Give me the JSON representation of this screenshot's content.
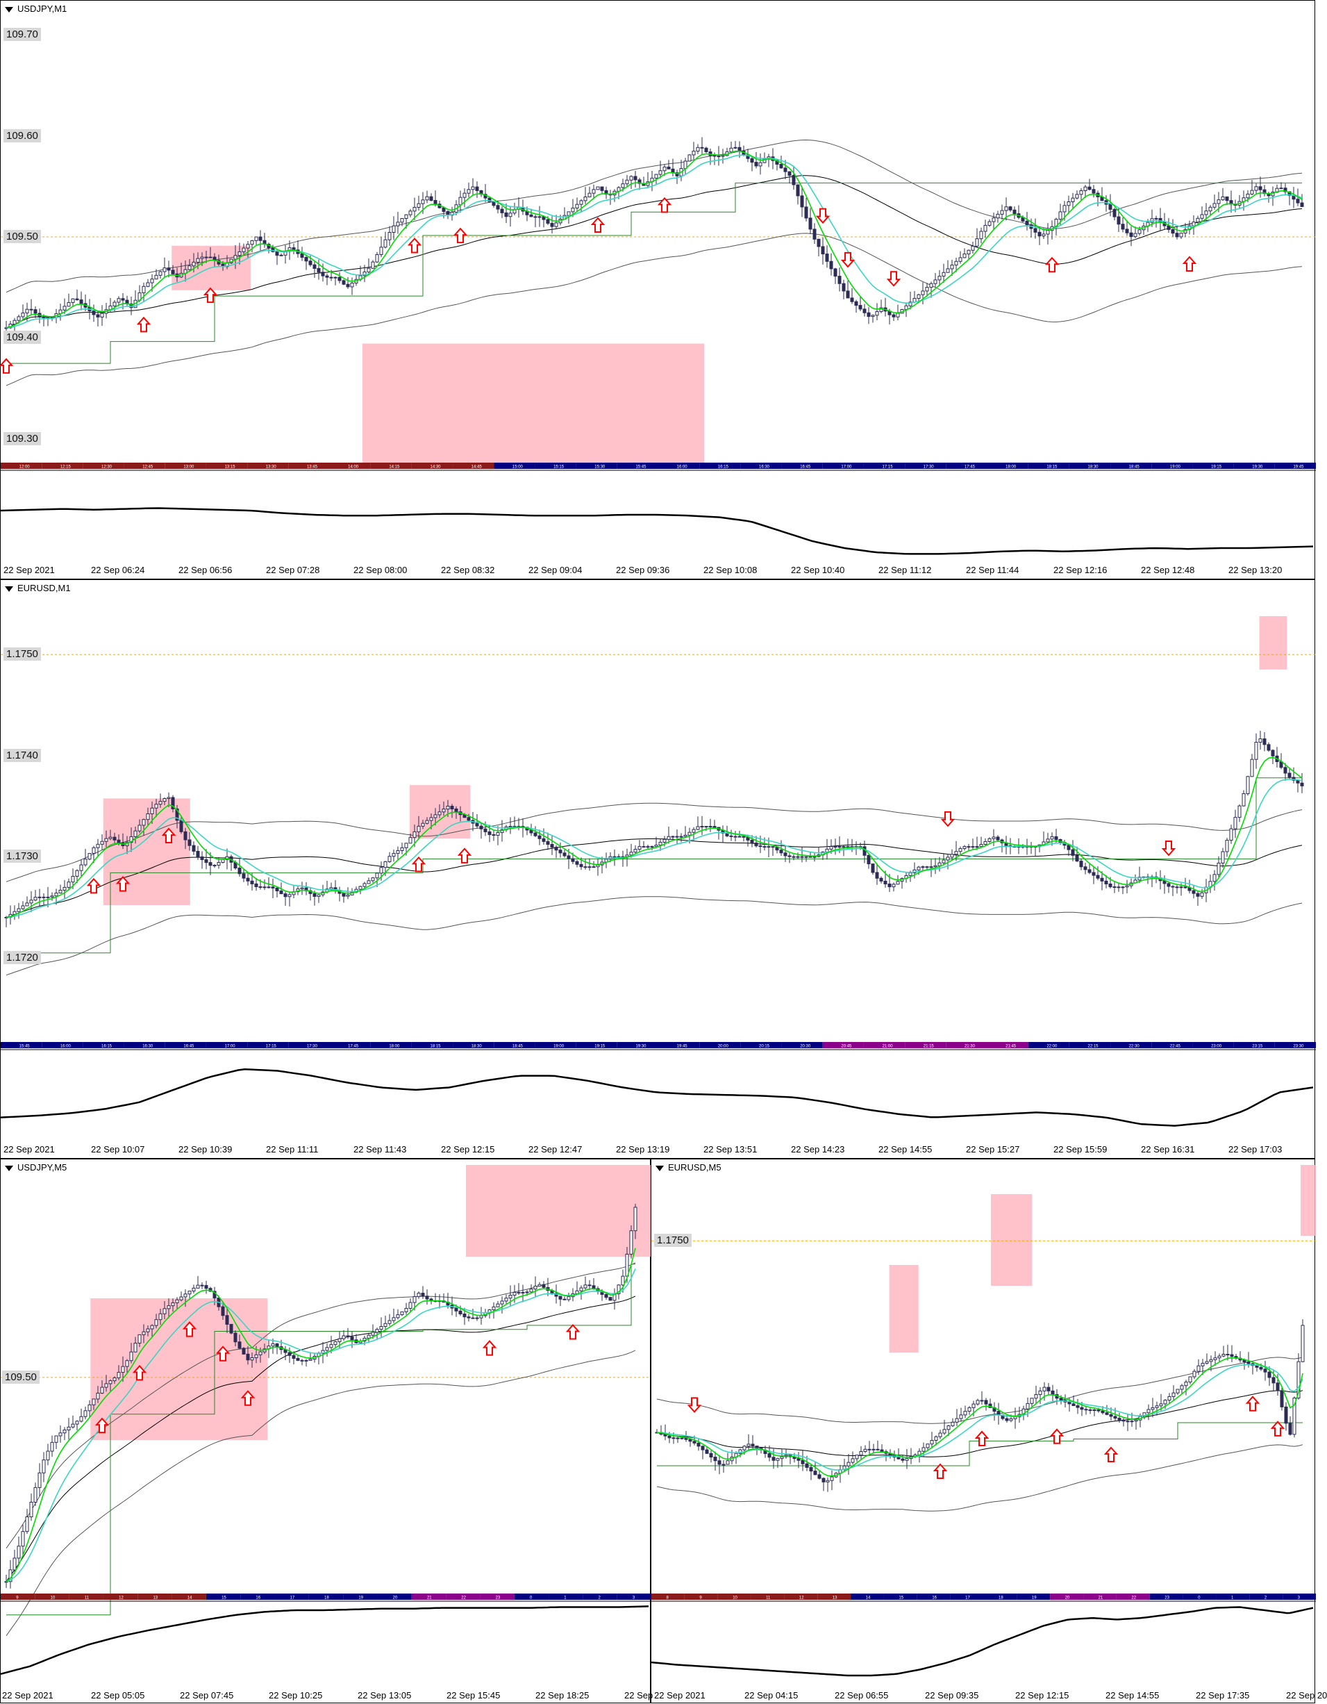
{
  "colors": {
    "candle": "#2b2b55",
    "ema_fast": "#00dd00",
    "ema_slow": "#3ad6c4",
    "ma": "#000000",
    "envelope": "#555555",
    "stepline": "#228b22",
    "arrow": "#ff0000",
    "highlight": "#ffb6c1",
    "level_line": "#ffa500",
    "oscillator": "#000000",
    "time_bar_maroon": "#8b1a1a",
    "time_bar_navy": "#000080",
    "time_bar_purple": "#8b008b",
    "time_bar_green": "#006400"
  },
  "panels": [
    {
      "title": "USDJPY,M1",
      "price_labels": [
        "109.70",
        "109.60",
        "109.50",
        "109.40",
        "109.30"
      ],
      "time_labels": [
        "22 Sep 2021",
        "22 Sep 06:24",
        "22 Sep 06:56",
        "22 Sep 07:28",
        "22 Sep 08:00",
        "22 Sep 08:32",
        "22 Sep 09:04",
        "22 Sep 09:36",
        "22 Sep 10:08",
        "22 Sep 10:40",
        "22 Sep 11:12",
        "22 Sep 11:44",
        "22 Sep 12:16",
        "22 Sep 12:48",
        "22 Sep 13:20"
      ],
      "hour_bar_labels": [
        "12:00",
        "12:15",
        "12:30",
        "12:45",
        "13:00",
        "13:15",
        "13:30",
        "13:45",
        "14:00",
        "14:15",
        "14:30",
        "14:45",
        "15:00",
        "15:15",
        "15:30",
        "15:45",
        "16:00",
        "16:15",
        "16:30",
        "16:45",
        "17:00",
        "17:15",
        "17:30",
        "17:45",
        "18:00",
        "18:15",
        "18:30",
        "18:45",
        "19:00",
        "19:15",
        "19:30",
        "19:45"
      ]
    },
    {
      "title": "EURUSD,M1",
      "price_labels": [
        "1.1750",
        "1.1740",
        "1.1730",
        "1.1720"
      ],
      "time_labels": [
        "22 Sep 2021",
        "22 Sep 10:07",
        "22 Sep 10:39",
        "22 Sep 11:11",
        "22 Sep 11:43",
        "22 Sep 12:15",
        "22 Sep 12:47",
        "22 Sep 13:19",
        "22 Sep 13:51",
        "22 Sep 14:23",
        "22 Sep 14:55",
        "22 Sep 15:27",
        "22 Sep 15:59",
        "22 Sep 16:31",
        "22 Sep 17:03"
      ],
      "hour_bar_labels": [
        "15:45",
        "16:00",
        "16:15",
        "16:30",
        "16:45",
        "17:00",
        "17:15",
        "17:30",
        "17:45",
        "18:00",
        "18:15",
        "18:30",
        "18:45",
        "19:00",
        "19:15",
        "19:30",
        "19:45",
        "20:00",
        "20:15",
        "20:30",
        "20:45",
        "21:00",
        "21:15",
        "21:30",
        "21:45",
        "22:00",
        "22:15",
        "22:30",
        "22:45",
        "23:00",
        "23:15",
        "23:30"
      ]
    },
    {
      "title": "USDJPY,M5",
      "price_labels": [
        "109.50"
      ],
      "time_labels": [
        "22 Sep 2021",
        "22 Sep 05:05",
        "22 Sep 07:45",
        "22 Sep 10:25",
        "22 Sep 13:05",
        "22 Sep 15:45",
        "22 Sep 18:25",
        "22 Sep"
      ],
      "hour_bar_labels": [
        "9",
        "10",
        "11",
        "12",
        "13",
        "14",
        "15",
        "16",
        "17",
        "18",
        "19",
        "20",
        "21",
        "22",
        "23",
        "0",
        "1",
        "2",
        "3"
      ]
    },
    {
      "title": "EURUSD,M5",
      "price_labels": [
        "1.1750"
      ],
      "time_labels": [
        "22 Sep 2021",
        "22 Sep 04:15",
        "22 Sep 06:55",
        "22 Sep 09:35",
        "22 Sep 12:15",
        "22 Sep 14:55",
        "22 Sep 17:35",
        "22 Sep 20"
      ],
      "hour_bar_labels": [
        "8",
        "9",
        "10",
        "11",
        "12",
        "13",
        "14",
        "15",
        "16",
        "17",
        "18",
        "19",
        "20",
        "21",
        "22",
        "23",
        "0",
        "1",
        "2",
        "3"
      ]
    }
  ],
  "chart_data": [
    {
      "type": "candlestick",
      "symbol": "USDJPY,M1",
      "ylim": [
        109.28,
        109.72
      ],
      "ref_level": 109.5,
      "close": [
        109.41,
        109.42,
        109.43,
        109.42,
        109.42,
        109.43,
        109.44,
        109.43,
        109.42,
        109.43,
        109.44,
        109.43,
        109.45,
        109.46,
        109.47,
        109.46,
        109.47,
        109.48,
        109.48,
        109.47,
        109.48,
        109.49,
        109.5,
        109.49,
        109.48,
        109.49,
        109.48,
        109.47,
        109.46,
        109.46,
        109.45,
        109.46,
        109.47,
        109.49,
        109.51,
        109.52,
        109.53,
        109.54,
        109.53,
        109.52,
        109.54,
        109.55,
        109.54,
        109.53,
        109.52,
        109.53,
        109.52,
        109.52,
        109.51,
        109.52,
        109.53,
        109.54,
        109.55,
        109.54,
        109.55,
        109.56,
        109.55,
        109.56,
        109.57,
        109.56,
        109.58,
        109.59,
        109.58,
        109.58,
        109.59,
        109.58,
        109.57,
        109.58,
        109.57,
        109.56,
        109.53,
        109.5,
        109.48,
        109.46,
        109.44,
        109.43,
        109.42,
        109.43,
        109.42,
        109.43,
        109.44,
        109.45,
        109.46,
        109.47,
        109.48,
        109.49,
        109.51,
        109.52,
        109.53,
        109.52,
        109.51,
        109.5,
        109.51,
        109.53,
        109.54,
        109.55,
        109.54,
        109.53,
        109.51,
        109.5,
        109.51,
        109.52,
        109.51,
        109.5,
        109.51,
        109.52,
        109.53,
        109.54,
        109.53,
        109.54,
        109.55,
        109.54,
        109.55,
        109.54,
        109.53
      ],
      "osc": [
        0.55,
        0.56,
        0.57,
        0.56,
        0.57,
        0.58,
        0.57,
        0.56,
        0.55,
        0.52,
        0.5,
        0.49,
        0.49,
        0.5,
        0.51,
        0.51,
        0.5,
        0.49,
        0.49,
        0.49,
        0.5,
        0.5,
        0.49,
        0.47,
        0.42,
        0.3,
        0.18,
        0.1,
        0.05,
        0.03,
        0.03,
        0.04,
        0.06,
        0.07,
        0.06,
        0.07,
        0.09,
        0.1,
        0.09,
        0.1,
        0.1,
        0.11,
        0.12
      ],
      "up_arrows_idx": [
        0,
        12,
        18,
        36,
        40,
        52,
        58,
        92,
        104
      ],
      "down_arrows_idx": [
        72,
        74,
        78
      ]
    },
    {
      "type": "candlestick",
      "symbol": "EURUSD,M1",
      "ylim": [
        1.1712,
        1.1756
      ],
      "ref_level": 1.175,
      "close": [
        1.1724,
        1.1725,
        1.1726,
        1.1726,
        1.1727,
        1.1729,
        1.1731,
        1.1732,
        1.1731,
        1.1733,
        1.1735,
        1.1736,
        1.1732,
        1.173,
        1.1729,
        1.173,
        1.1728,
        1.1727,
        1.1727,
        1.1726,
        1.1727,
        1.1726,
        1.1727,
        1.1726,
        1.1727,
        1.1728,
        1.173,
        1.1731,
        1.1733,
        1.1734,
        1.1735,
        1.1734,
        1.1733,
        1.1732,
        1.1733,
        1.1733,
        1.1732,
        1.1731,
        1.173,
        1.1729,
        1.1729,
        1.173,
        1.173,
        1.1731,
        1.1731,
        1.1732,
        1.1732,
        1.1733,
        1.1733,
        1.1732,
        1.1732,
        1.1731,
        1.1731,
        1.173,
        1.173,
        1.173,
        1.1731,
        1.1731,
        1.1731,
        1.1728,
        1.1727,
        1.1728,
        1.1729,
        1.1729,
        1.173,
        1.1731,
        1.1731,
        1.1732,
        1.1731,
        1.1731,
        1.1731,
        1.1732,
        1.1731,
        1.1729,
        1.1728,
        1.1727,
        1.1727,
        1.1728,
        1.1728,
        1.1727,
        1.1727,
        1.1726,
        1.1728,
        1.1732,
        1.1736,
        1.1742,
        1.174,
        1.1738,
        1.1737
      ],
      "osc": [
        0.22,
        0.24,
        0.27,
        0.32,
        0.4,
        0.55,
        0.7,
        0.8,
        0.78,
        0.72,
        0.64,
        0.58,
        0.55,
        0.58,
        0.66,
        0.72,
        0.72,
        0.66,
        0.58,
        0.52,
        0.5,
        0.49,
        0.48,
        0.46,
        0.4,
        0.32,
        0.26,
        0.22,
        0.24,
        0.26,
        0.28,
        0.26,
        0.22,
        0.14,
        0.12,
        0.16,
        0.3,
        0.52,
        0.58
      ],
      "up_arrows_idx": [
        6,
        8,
        11,
        28,
        31
      ],
      "down_arrows_idx": [
        64,
        79
      ]
    },
    {
      "type": "candlestick",
      "symbol": "USDJPY,M5",
      "ylim": [
        109.25,
        109.74
      ],
      "ref_level": 109.5,
      "close": [
        109.26,
        109.3,
        109.35,
        109.4,
        109.43,
        109.44,
        109.45,
        109.47,
        109.49,
        109.5,
        109.52,
        109.55,
        109.56,
        109.58,
        109.59,
        109.6,
        109.61,
        109.6,
        109.57,
        109.54,
        109.52,
        109.53,
        109.54,
        109.53,
        109.52,
        109.52,
        109.53,
        109.54,
        109.55,
        109.54,
        109.55,
        109.56,
        109.57,
        109.58,
        109.6,
        109.59,
        109.59,
        109.58,
        109.57,
        109.57,
        109.58,
        109.59,
        109.6,
        109.6,
        109.61,
        109.6,
        109.59,
        109.6,
        109.61,
        109.6,
        109.59,
        109.62,
        109.7
      ],
      "osc": [
        0.1,
        0.2,
        0.35,
        0.48,
        0.58,
        0.66,
        0.73,
        0.8,
        0.86,
        0.9,
        0.92,
        0.92,
        0.93,
        0.94,
        0.94,
        0.95,
        0.95,
        0.95,
        0.95,
        0.96,
        0.96,
        0.96,
        0.97
      ],
      "up_arrows_idx": [
        8,
        11,
        15,
        18,
        20,
        40,
        47
      ],
      "down_arrows_idx": []
    },
    {
      "type": "candlestick",
      "symbol": "EURUSD,M5",
      "ylim": [
        1.1688,
        1.1762
      ],
      "ref_level": 1.175,
      "close": [
        1.1716,
        1.1715,
        1.1715,
        1.1714,
        1.1712,
        1.171,
        1.1712,
        1.1714,
        1.1713,
        1.1711,
        1.1712,
        1.1711,
        1.1709,
        1.1707,
        1.1709,
        1.1711,
        1.1713,
        1.1713,
        1.1712,
        1.1711,
        1.1712,
        1.1714,
        1.1716,
        1.1718,
        1.172,
        1.1722,
        1.172,
        1.1718,
        1.1719,
        1.1722,
        1.1724,
        1.1722,
        1.1721,
        1.172,
        1.172,
        1.1719,
        1.1718,
        1.1718,
        1.172,
        1.1721,
        1.1723,
        1.1725,
        1.1728,
        1.1729,
        1.173,
        1.1729,
        1.1728,
        1.1727,
        1.1724,
        1.1715,
        1.1735
      ],
      "osc": [
        0.25,
        0.22,
        0.2,
        0.18,
        0.16,
        0.14,
        0.12,
        0.1,
        0.08,
        0.08,
        0.1,
        0.16,
        0.24,
        0.34,
        0.48,
        0.6,
        0.72,
        0.8,
        0.82,
        0.8,
        0.82,
        0.86,
        0.9,
        0.95,
        0.96,
        0.92,
        0.88,
        0.95
      ],
      "up_arrows_idx": [
        22,
        25,
        31,
        35,
        46,
        48
      ],
      "down_arrows_idx": [
        3
      ]
    }
  ]
}
